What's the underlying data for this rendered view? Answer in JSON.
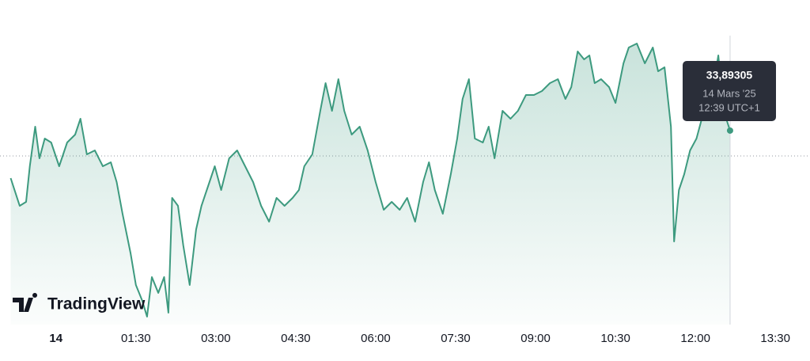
{
  "chart_data": {
    "type": "area",
    "x": [
      -0.85,
      -0.68,
      -0.56,
      -0.49,
      -0.39,
      -0.31,
      -0.21,
      -0.09,
      0.06,
      0.21,
      0.36,
      0.46,
      0.58,
      0.73,
      0.88,
      1.03,
      1.14,
      1.25,
      1.4,
      1.5,
      1.62,
      1.71,
      1.8,
      1.92,
      2.03,
      2.11,
      2.18,
      2.29,
      2.39,
      2.51,
      2.63,
      2.73,
      2.88,
      2.98,
      3.1,
      3.25,
      3.4,
      3.55,
      3.7,
      3.85,
      4.0,
      4.14,
      4.29,
      4.44,
      4.56,
      4.66,
      4.81,
      4.96,
      5.06,
      5.18,
      5.3,
      5.41,
      5.55,
      5.7,
      5.85,
      6.0,
      6.15,
      6.3,
      6.45,
      6.59,
      6.74,
      6.89,
      7.0,
      7.11,
      7.26,
      7.41,
      7.53,
      7.63,
      7.75,
      7.86,
      8.01,
      8.12,
      8.23,
      8.38,
      8.53,
      8.67,
      8.82,
      8.97,
      9.12,
      9.27,
      9.42,
      9.56,
      9.67,
      9.79,
      9.91,
      10.01,
      10.11,
      10.23,
      10.38,
      10.5,
      10.65,
      10.75,
      10.9,
      11.05,
      11.2,
      11.3,
      11.42,
      11.54,
      11.6,
      11.69,
      11.79,
      11.9,
      12.02,
      12.16,
      12.31,
      12.43,
      12.53,
      12.65
    ],
    "values": [
      33.833,
      33.798,
      33.803,
      33.848,
      33.898,
      33.858,
      33.883,
      33.878,
      33.848,
      33.878,
      33.888,
      33.908,
      33.863,
      33.868,
      33.848,
      33.853,
      33.828,
      33.788,
      33.738,
      33.698,
      33.678,
      33.658,
      33.708,
      33.688,
      33.708,
      33.663,
      33.808,
      33.798,
      33.748,
      33.698,
      33.768,
      33.798,
      33.828,
      33.848,
      33.818,
      33.858,
      33.868,
      33.848,
      33.828,
      33.798,
      33.778,
      33.808,
      33.798,
      33.808,
      33.818,
      33.848,
      33.863,
      33.918,
      33.953,
      33.918,
      33.958,
      33.918,
      33.888,
      33.898,
      33.868,
      33.828,
      33.793,
      33.803,
      33.793,
      33.808,
      33.778,
      33.828,
      33.853,
      33.818,
      33.788,
      33.838,
      33.883,
      33.933,
      33.958,
      33.883,
      33.878,
      33.898,
      33.858,
      33.918,
      33.908,
      33.918,
      33.938,
      33.938,
      33.943,
      33.953,
      33.958,
      33.933,
      33.948,
      33.993,
      33.983,
      33.988,
      33.953,
      33.958,
      33.948,
      33.928,
      33.978,
      33.998,
      34.003,
      33.978,
      33.998,
      33.968,
      33.973,
      33.898,
      33.753,
      33.818,
      33.838,
      33.868,
      33.883,
      33.918,
      33.938,
      33.988,
      33.918,
      33.89305
    ],
    "color": "#3d9a7f",
    "baseline": 33.861,
    "xlim": [
      -1.05,
      14.15
    ],
    "ylim": [
      33.648,
      34.058
    ],
    "xticks": [
      {
        "value": 0,
        "label": "14"
      },
      {
        "value": 1.5,
        "label": "01:30"
      },
      {
        "value": 3,
        "label": "03:00"
      },
      {
        "value": 4.5,
        "label": "04:30"
      },
      {
        "value": 6,
        "label": "06:00"
      },
      {
        "value": 7.5,
        "label": "07:30"
      },
      {
        "value": 9,
        "label": "09:00"
      },
      {
        "value": 10.5,
        "label": "10:30"
      },
      {
        "value": 12,
        "label": "12:00"
      },
      {
        "value": 13.5,
        "label": "13:30"
      }
    ],
    "tooltip": {
      "value": "33,89305",
      "date": "14 Mars '25",
      "time": "12:39 UTC+1"
    },
    "logo": "TradingView"
  }
}
